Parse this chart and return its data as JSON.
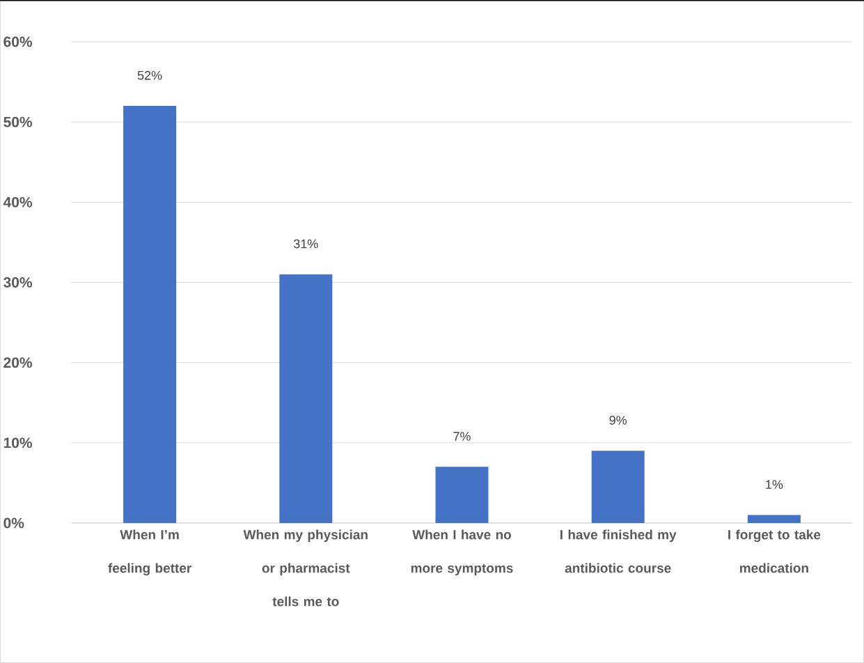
{
  "chart_data": {
    "type": "bar",
    "categories": [
      "When I’m feeling better",
      "When my physician or pharmacist tells me to",
      "When I have no more symptoms",
      "I have finished my antibiotic course",
      "I forget to take medication"
    ],
    "values": [
      52,
      31,
      7,
      9,
      1
    ],
    "value_labels": [
      "52%",
      "31%",
      "7%",
      "9%",
      "1%"
    ],
    "color": "#4472c4",
    "ylim": [
      0,
      60
    ],
    "yticks": [
      {
        "value": 0,
        "label": "0%"
      },
      {
        "value": 10,
        "label": "10%"
      },
      {
        "value": 20,
        "label": "20%"
      },
      {
        "value": 30,
        "label": "30%"
      },
      {
        "value": 40,
        "label": "40%"
      },
      {
        "value": 50,
        "label": "50%"
      },
      {
        "value": 60,
        "label": "60%"
      }
    ],
    "grid": "y"
  }
}
